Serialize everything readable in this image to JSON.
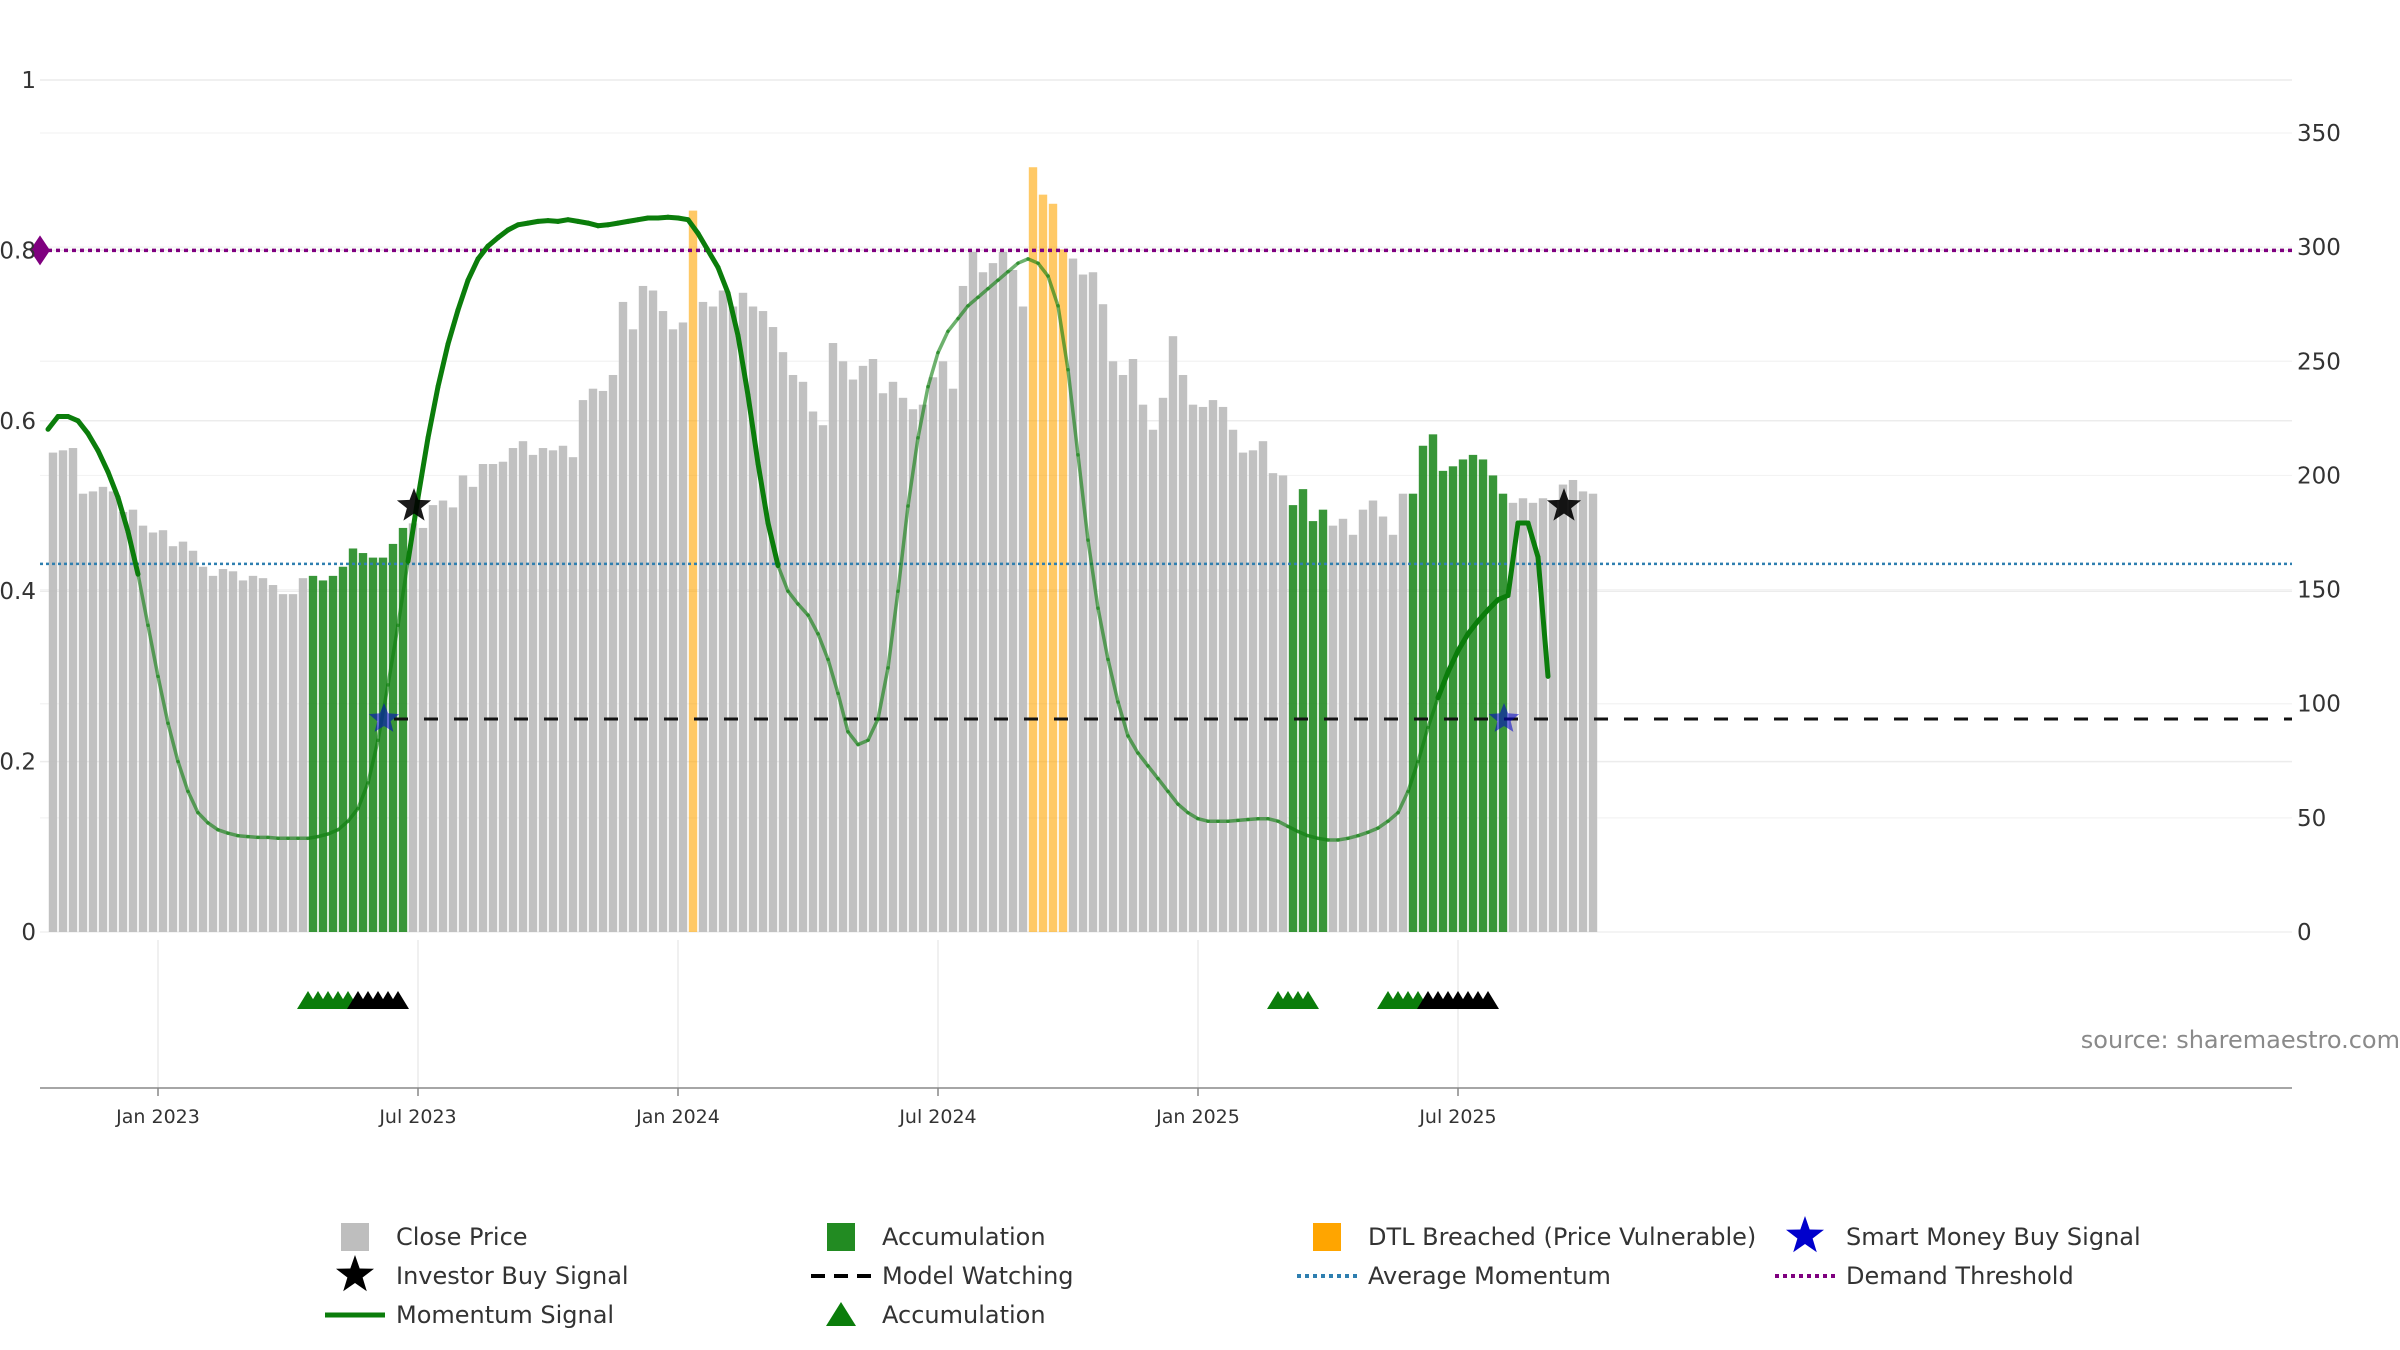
{
  "chart_data": {
    "type": "bar",
    "title": "",
    "source": "source: sharemaestro.com",
    "x_axis": {
      "labels": [
        "Jan 2023",
        "Jul 2023",
        "Jan 2024",
        "Jul 2024",
        "Jan 2025",
        "Jul 2025"
      ],
      "label_week_index": [
        11,
        37,
        63,
        89,
        115,
        141
      ]
    },
    "left_axis": {
      "range": [
        0,
        1
      ],
      "ticks": [
        "0",
        "0.2",
        "0.4",
        "0.6",
        "0.8",
        "1"
      ],
      "tick_values": [
        0,
        0.2,
        0.4,
        0.6,
        0.8,
        1.0
      ]
    },
    "right_axis": {
      "range": [
        0,
        372
      ],
      "ticks": [
        "0",
        "50",
        "100",
        "150",
        "200",
        "250",
        "300",
        "350"
      ],
      "tick_values": [
        0,
        50,
        100,
        150,
        200,
        250,
        300,
        350
      ]
    },
    "close_price": [
      210,
      211,
      212,
      192,
      193,
      195,
      193,
      184,
      185,
      178,
      175,
      176,
      169,
      171,
      167,
      160,
      156,
      159,
      158,
      154,
      156,
      155,
      152,
      148,
      148,
      155,
      156,
      154,
      156,
      160,
      168,
      166,
      164,
      164,
      170,
      177,
      179,
      177,
      187,
      189,
      186,
      200,
      195,
      205,
      205,
      206,
      212,
      215,
      209,
      212,
      211,
      213,
      208,
      233,
      238,
      237,
      244,
      276,
      264,
      283,
      281,
      272,
      264,
      267,
      316,
      276,
      274,
      281,
      274,
      280,
      274,
      272,
      265,
      254,
      244,
      241,
      228,
      222,
      258,
      250,
      242,
      248,
      251,
      236,
      241,
      234,
      229,
      231,
      243,
      250,
      238,
      283,
      298,
      289,
      293,
      298,
      290,
      274,
      335,
      323,
      319,
      299,
      295,
      288,
      289,
      275,
      250,
      244,
      251,
      231,
      220,
      234,
      261,
      244,
      231,
      230,
      233,
      230,
      220,
      210,
      211,
      215,
      201,
      200,
      187,
      194,
      180,
      185,
      178,
      181,
      174,
      185,
      189,
      182,
      174,
      192,
      192,
      213,
      218,
      202,
      204,
      207,
      209,
      207,
      200,
      192,
      188,
      190,
      188,
      190,
      189,
      196,
      198,
      193,
      192
    ],
    "bar_types": [
      "c",
      "c",
      "c",
      "c",
      "c",
      "c",
      "c",
      "c",
      "c",
      "c",
      "c",
      "c",
      "c",
      "c",
      "c",
      "c",
      "c",
      "c",
      "c",
      "c",
      "c",
      "c",
      "c",
      "c",
      "c",
      "c",
      "a",
      "a",
      "a",
      "a",
      "a",
      "a",
      "a",
      "a",
      "a",
      "a",
      "c",
      "c",
      "c",
      "c",
      "c",
      "c",
      "c",
      "c",
      "c",
      "c",
      "c",
      "c",
      "c",
      "c",
      "c",
      "c",
      "c",
      "c",
      "c",
      "c",
      "c",
      "c",
      "c",
      "c",
      "c",
      "c",
      "c",
      "c",
      "d",
      "c",
      "c",
      "c",
      "c",
      "c",
      "c",
      "c",
      "c",
      "c",
      "c",
      "c",
      "c",
      "c",
      "c",
      "c",
      "c",
      "c",
      "c",
      "c",
      "c",
      "c",
      "c",
      "c",
      "c",
      "c",
      "c",
      "c",
      "c",
      "c",
      "c",
      "c",
      "c",
      "c",
      "d",
      "d",
      "d",
      "d",
      "c",
      "c",
      "c",
      "c",
      "c",
      "c",
      "c",
      "c",
      "c",
      "c",
      "c",
      "c",
      "c",
      "c",
      "c",
      "c",
      "c",
      "c",
      "c",
      "c",
      "c",
      "c",
      "a",
      "a",
      "a",
      "a",
      "c",
      "c",
      "c",
      "c",
      "c",
      "c",
      "c",
      "c",
      "a",
      "a",
      "a",
      "a",
      "a",
      "a",
      "a",
      "a",
      "a",
      "a",
      "c",
      "c",
      "c",
      "c",
      "c",
      "c",
      "c",
      "c",
      "c",
      "c"
    ],
    "momentum": [
      0.59,
      0.605,
      0.605,
      0.6,
      0.585,
      0.565,
      0.54,
      0.51,
      0.47,
      0.42,
      0.36,
      0.3,
      0.245,
      0.2,
      0.165,
      0.14,
      0.128,
      0.12,
      0.116,
      0.113,
      0.112,
      0.111,
      0.111,
      0.11,
      0.11,
      0.11,
      0.11,
      0.112,
      0.115,
      0.12,
      0.13,
      0.145,
      0.175,
      0.225,
      0.29,
      0.36,
      0.435,
      0.51,
      0.58,
      0.64,
      0.69,
      0.73,
      0.765,
      0.79,
      0.805,
      0.815,
      0.824,
      0.83,
      0.832,
      0.834,
      0.835,
      0.834,
      0.836,
      0.834,
      0.832,
      0.829,
      0.83,
      0.832,
      0.834,
      0.836,
      0.838,
      0.838,
      0.839,
      0.838,
      0.836,
      0.82,
      0.8,
      0.78,
      0.75,
      0.7,
      0.63,
      0.55,
      0.48,
      0.43,
      0.4,
      0.385,
      0.372,
      0.35,
      0.32,
      0.28,
      0.235,
      0.22,
      0.225,
      0.25,
      0.31,
      0.4,
      0.5,
      0.58,
      0.64,
      0.68,
      0.705,
      0.72,
      0.735,
      0.745,
      0.755,
      0.765,
      0.775,
      0.785,
      0.79,
      0.785,
      0.77,
      0.735,
      0.66,
      0.56,
      0.46,
      0.38,
      0.32,
      0.27,
      0.23,
      0.21,
      0.195,
      0.18,
      0.165,
      0.15,
      0.14,
      0.133,
      0.13,
      0.13,
      0.13,
      0.131,
      0.132,
      0.133,
      0.133,
      0.13,
      0.124,
      0.118,
      0.113,
      0.11,
      0.108,
      0.108,
      0.11,
      0.113,
      0.117,
      0.122,
      0.13,
      0.14,
      0.165,
      0.2,
      0.24,
      0.275,
      0.305,
      0.33,
      0.35,
      0.365,
      0.378,
      0.39,
      0.395,
      0.48,
      0.48,
      0.44,
      0.3
    ],
    "momentum_dim_ranges": [
      [
        9,
        36
      ],
      [
        73,
        139
      ],
      [
        154,
        169
      ]
    ],
    "average_momentum": 0.432,
    "demand_threshold": 0.8,
    "model_watching_level": 0.25,
    "model_watching_from_week": 34,
    "investor_buy_signals": [
      {
        "week": 37,
        "value": 0.5
      },
      {
        "week": 152,
        "value": 0.5
      }
    ],
    "smart_money_buy_signals": [
      {
        "week": 34,
        "value": 0.25
      },
      {
        "week": 146,
        "value": 0.25
      }
    ],
    "accumulation_markers": {
      "green_weeks": [
        26,
        27,
        28,
        29,
        30,
        123,
        124,
        125,
        126,
        134,
        135,
        136,
        137
      ],
      "black_weeks": [
        31,
        32,
        33,
        34,
        35,
        138,
        139,
        140,
        141,
        142,
        143,
        144
      ]
    },
    "legend": [
      {
        "label": "Close Price",
        "symbol": "square",
        "color": "#bebebe"
      },
      {
        "label": "Accumulation",
        "symbol": "square",
        "color": "#228b22"
      },
      {
        "label": "DTL Breached (Price Vulnerable)",
        "symbol": "square",
        "color": "#ffa500"
      },
      {
        "label": "Smart Money Buy Signal",
        "symbol": "star",
        "color": "#0000cc"
      },
      {
        "label": "Investor Buy Signal",
        "symbol": "star",
        "color": "#000000"
      },
      {
        "label": "Model Watching",
        "symbol": "dash",
        "color": "#000000"
      },
      {
        "label": "Average Momentum",
        "symbol": "dot",
        "color": "#2e7fb0"
      },
      {
        "label": "Demand Threshold",
        "symbol": "dot",
        "color": "#7f007f"
      },
      {
        "label": "Momentum Signal",
        "symbol": "line",
        "color": "#0b7d0b"
      },
      {
        "label": "Accumulation",
        "symbol": "triangle",
        "color": "#0b7d0b"
      }
    ],
    "colors": {
      "close": "#bebebe",
      "accumulation": "#228b22",
      "dtl": "#ffa500",
      "momentum": "#0b7d0b",
      "average": "#2e7fb0",
      "threshold": "#7f007f",
      "smart_money": "#0000cc",
      "investor": "#000000",
      "grid": "#ececec",
      "axis": "#888888"
    }
  }
}
